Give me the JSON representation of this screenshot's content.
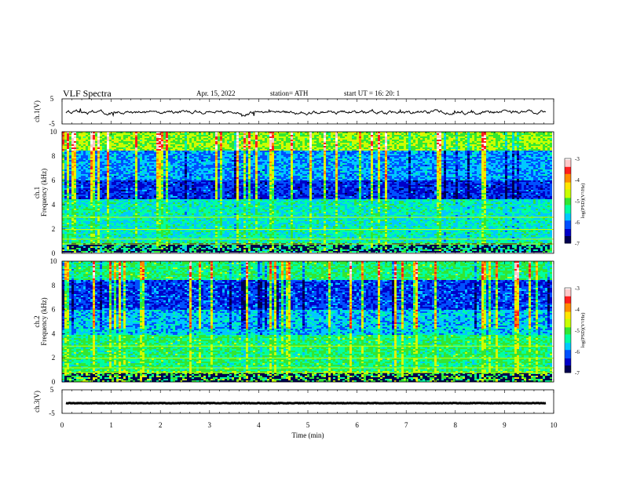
{
  "header": {
    "title": "VLF  Spectra",
    "date": "Apr. 15, 2022",
    "station": "station= ATH",
    "start": "start  UT  =    16: 20: 1"
  },
  "colors": {
    "colormap": [
      "#000050",
      "#0000c8",
      "#0050ff",
      "#00c8ff",
      "#00ffa0",
      "#32e632",
      "#c8ff00",
      "#ffe600",
      "#ff8c00",
      "#ff1e1e",
      "#ffc8c8",
      "#ffffff"
    ],
    "trace": "#000000"
  },
  "chart_data": [
    {
      "type": "line",
      "ylabel": "ch.1(V)",
      "ylim": [
        -5,
        5
      ],
      "ytick_labels": [
        "5",
        "-5"
      ],
      "xlim": [
        0,
        10
      ],
      "description_series": "voltage trace near 0 V with small fluctuations"
    },
    {
      "type": "heatmap",
      "ylabel": "ch.1\nFrequency  (kHz)",
      "ylabel_lines": [
        "ch.1",
        "Frequency  (kHz)"
      ],
      "ylim": [
        0,
        10
      ],
      "ytick_labels": [
        "0",
        "2",
        "4",
        "6",
        "8",
        "10"
      ],
      "xlim": [
        0,
        10
      ],
      "colorbar": {
        "label": "log(PSD)(V²/Hz)",
        "range": [
          -7,
          -3
        ],
        "tick_labels": [
          "-3",
          "-4",
          "-5",
          "-6",
          "-7"
        ]
      }
    },
    {
      "type": "heatmap",
      "ylabel_lines": [
        "ch.2",
        "Frequency  (kHz)"
      ],
      "ylim": [
        0,
        10
      ],
      "ytick_labels": [
        "0",
        "2",
        "4",
        "6",
        "8",
        "10"
      ],
      "xlim": [
        0,
        10
      ],
      "colorbar": {
        "label": "log(PSD)(V²/Hz)",
        "range": [
          -7,
          -3
        ],
        "tick_labels": [
          "-3",
          "-4",
          "-5",
          "-6",
          "-7"
        ]
      }
    },
    {
      "type": "line",
      "ylabel": "ch.3(V)",
      "ylim": [
        -5,
        5
      ],
      "ytick_labels": [
        "5",
        "-5"
      ],
      "xlim": [
        0,
        10
      ],
      "xlabel": "Time  (min)",
      "xtick_labels": [
        "0",
        "1",
        "2",
        "3",
        "4",
        "5",
        "6",
        "7",
        "8",
        "9",
        "10"
      ]
    }
  ]
}
